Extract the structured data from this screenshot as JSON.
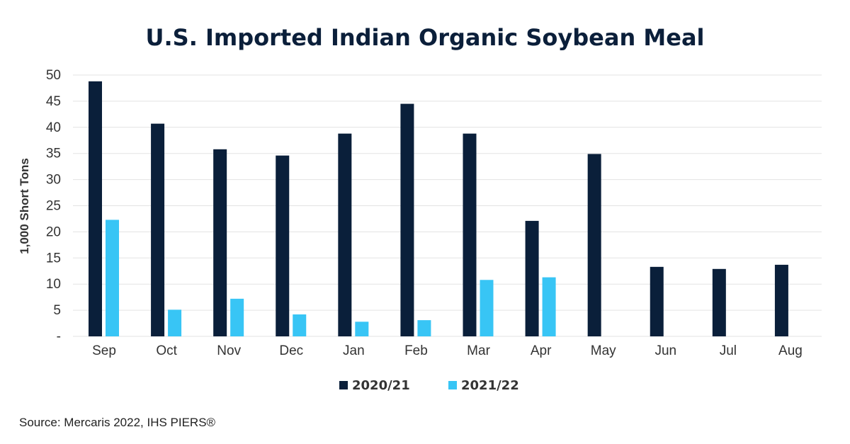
{
  "chart_data": {
    "type": "bar",
    "title": "U.S. Imported Indian Organic Soybean Meal",
    "ylabel": "1,000 Short Tons",
    "xlabel": "",
    "categories": [
      "Sep",
      "Oct",
      "Nov",
      "Dec",
      "Jan",
      "Feb",
      "Mar",
      "Apr",
      "May",
      "Jun",
      "Jul",
      "Aug"
    ],
    "series": [
      {
        "name": "2020/21",
        "color": "#0a1f3a",
        "values": [
          48.8,
          40.7,
          35.8,
          34.6,
          38.8,
          44.5,
          38.8,
          22.1,
          34.9,
          13.3,
          12.9,
          13.7
        ]
      },
      {
        "name": "2021/22",
        "color": "#38c5f5",
        "values": [
          22.3,
          5.1,
          7.2,
          4.2,
          2.8,
          3.1,
          10.8,
          11.3,
          null,
          null,
          null,
          null
        ]
      }
    ],
    "ylim": [
      0,
      50
    ],
    "yticks": [
      0,
      5,
      10,
      15,
      20,
      25,
      30,
      35,
      40,
      45,
      50
    ],
    "ytick_labels": [
      "-",
      "5",
      "10",
      "15",
      "20",
      "25",
      "30",
      "35",
      "40",
      "45",
      "50"
    ],
    "grid": true,
    "legend_position": "bottom"
  },
  "source": "Source: Mercaris 2022, IHS PIERS®"
}
